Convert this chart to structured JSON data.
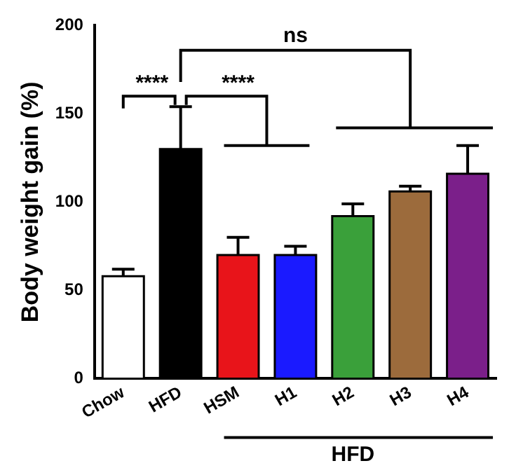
{
  "chart_data": {
    "type": "bar",
    "ylabel": "Body weight gain (%)",
    "categories": [
      "Chow",
      "HFD",
      "HSM",
      "H1",
      "H2",
      "H3",
      "H4"
    ],
    "values": [
      58,
      130,
      70,
      70,
      92,
      106,
      116
    ],
    "colors": [
      "#ffffff",
      "#000000",
      "#e8141a",
      "#1a1aff",
      "#3aa03a",
      "#9c6b3c",
      "#7b1f8a"
    ],
    "errors": [
      [
        58,
        62
      ],
      [
        130,
        154
      ],
      [
        70,
        80
      ],
      [
        70,
        75
      ],
      [
        92,
        99
      ],
      [
        106,
        109
      ],
      [
        116,
        132
      ]
    ],
    "ylim": [
      0,
      200
    ],
    "yticks": [
      0,
      50,
      100,
      150,
      200
    ],
    "grid": false,
    "legend": false,
    "annotations": [
      "****",
      "****",
      "ns",
      "HFD"
    ]
  }
}
